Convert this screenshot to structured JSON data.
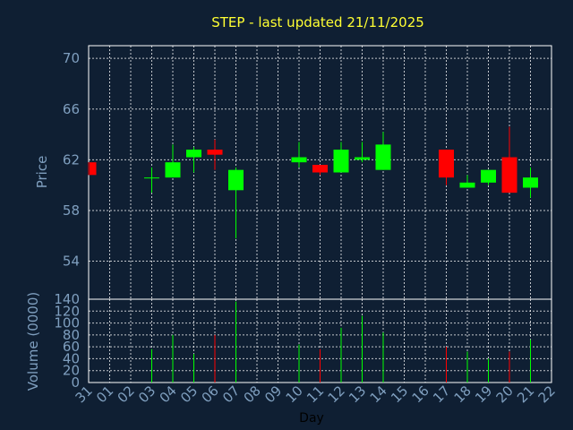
{
  "chart_data": {
    "type": "candlestick",
    "title": "STEP - last updated 21/11/2025",
    "xlabel": "Day",
    "ylabel": "Price",
    "volume_ylabel": "Volume (0000)",
    "grid": true,
    "colors": {
      "background": "#0f1f33",
      "up": "#00ff00",
      "down": "#ff0000",
      "axis_text": "#7f9fbf",
      "title": "#ffff33",
      "grid": "#ffffff"
    },
    "x_ticks": [
      "31",
      "01",
      "02",
      "03",
      "04",
      "05",
      "06",
      "07",
      "08",
      "09",
      "10",
      "11",
      "12",
      "13",
      "14",
      "15",
      "16",
      "17",
      "18",
      "19",
      "20",
      "21",
      "22"
    ],
    "price_ylim": [
      51,
      71
    ],
    "price_yticks": [
      54,
      58,
      62,
      66,
      70
    ],
    "volume_ylim": [
      0,
      140
    ],
    "volume_yticks": [
      0,
      20,
      40,
      60,
      80,
      100,
      120,
      140
    ],
    "candles": [
      {
        "day": "31",
        "open": 61.8,
        "high": 61.8,
        "low": 60.8,
        "close": 60.8,
        "volume": 0
      },
      {
        "day": "03",
        "open": 60.6,
        "high": 61.4,
        "low": 59.4,
        "close": 60.6,
        "volume": 56
      },
      {
        "day": "04",
        "open": 60.6,
        "high": 63.2,
        "low": 60.6,
        "close": 61.8,
        "volume": 80
      },
      {
        "day": "05",
        "open": 62.2,
        "high": 63.0,
        "low": 61.0,
        "close": 62.8,
        "volume": 48
      },
      {
        "day": "06",
        "open": 62.8,
        "high": 63.6,
        "low": 61.2,
        "close": 62.4,
        "volume": 80
      },
      {
        "day": "07",
        "open": 59.6,
        "high": 61.4,
        "low": 55.8,
        "close": 61.2,
        "volume": 136
      },
      {
        "day": "10",
        "open": 61.8,
        "high": 63.4,
        "low": 61.4,
        "close": 62.2,
        "volume": 64
      },
      {
        "day": "11",
        "open": 61.6,
        "high": 61.6,
        "low": 60.8,
        "close": 61.0,
        "volume": 56
      },
      {
        "day": "12",
        "open": 61.0,
        "high": 63.4,
        "low": 61.0,
        "close": 62.8,
        "volume": 92
      },
      {
        "day": "13",
        "open": 62.0,
        "high": 63.4,
        "low": 61.8,
        "close": 62.2,
        "volume": 112
      },
      {
        "day": "14",
        "open": 61.2,
        "high": 64.2,
        "low": 61.2,
        "close": 63.2,
        "volume": 84
      },
      {
        "day": "17",
        "open": 62.8,
        "high": 62.8,
        "low": 60.0,
        "close": 60.6,
        "volume": 60
      },
      {
        "day": "18",
        "open": 59.8,
        "high": 60.8,
        "low": 59.8,
        "close": 60.2,
        "volume": 52
      },
      {
        "day": "19",
        "open": 60.2,
        "high": 61.2,
        "low": 60.0,
        "close": 61.2,
        "volume": 40
      },
      {
        "day": "20",
        "open": 62.2,
        "high": 64.6,
        "low": 59.4,
        "close": 59.4,
        "volume": 52
      },
      {
        "day": "21",
        "open": 59.8,
        "high": 61.4,
        "low": 59.0,
        "close": 60.6,
        "volume": 72
      }
    ]
  }
}
